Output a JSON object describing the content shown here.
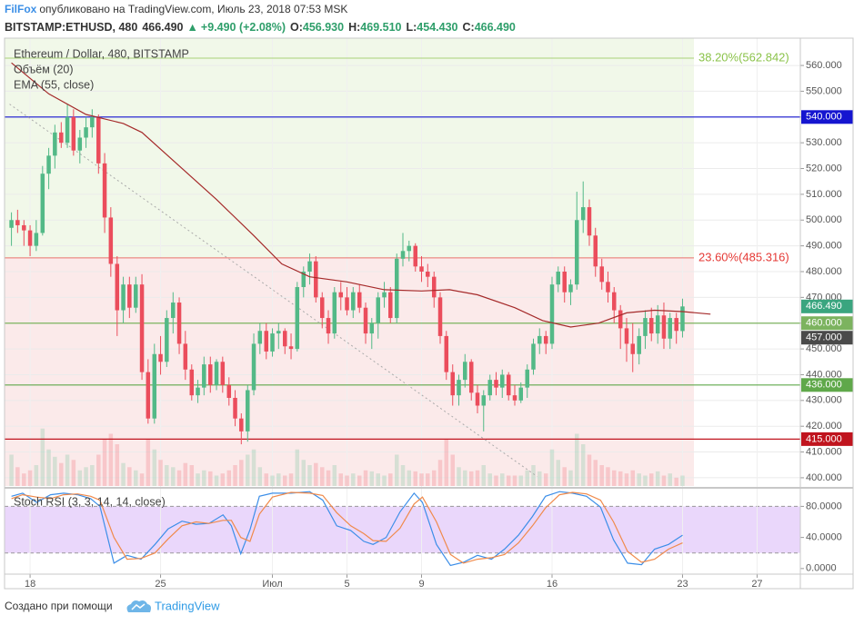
{
  "header": {
    "author": "FilFox",
    "published": "опубликовано на TradingView.com, Июль 23, 2018 07:53 MSK",
    "symbol": "BITSTAMP:ETHUSD, 480",
    "last": "466.490",
    "arrow": "▲",
    "change": "+9.490 (+2.08%)",
    "ohlc": [
      {
        "key": "O:",
        "value": "456.930"
      },
      {
        "key": "H:",
        "value": "469.510"
      },
      {
        "key": "L:",
        "value": "454.430"
      },
      {
        "key": "C:",
        "value": "466.490"
      }
    ]
  },
  "chart_data": [
    {
      "type": "candlestick",
      "legend": [
        "Ethereum / Dollar, 480, BITSTAMP",
        "Объём (20)",
        "EMA (55, close)"
      ],
      "up_color": "#53b987",
      "down_color": "#eb4d5c",
      "x": [
        -1,
        -0.67,
        -0.33,
        0,
        0.33,
        0.67,
        1,
        1.33,
        1.67,
        2,
        2.33,
        2.67,
        3,
        3.33,
        3.67,
        4,
        4.33,
        4.67,
        5,
        5.33,
        5.67,
        6,
        6.33,
        6.67,
        7,
        7.33,
        7.67,
        8,
        8.33,
        8.67,
        9,
        9.33,
        9.67,
        10,
        10.33,
        10.67,
        11,
        11.33,
        11.67,
        12,
        12.33,
        12.67,
        13,
        13.33,
        13.67,
        14,
        14.33,
        14.67,
        15,
        15.33,
        15.67,
        16,
        16.33,
        16.67,
        17,
        17.33,
        17.67,
        18,
        18.33,
        18.67,
        19,
        19.33,
        19.67,
        20,
        20.33,
        20.67,
        21,
        21.33,
        21.67,
        22,
        22.33,
        22.67,
        23,
        23.33,
        23.67,
        24,
        24.33,
        24.67,
        25,
        25.33,
        25.67,
        26,
        26.33,
        26.67,
        27,
        27.33,
        27.67,
        28,
        28.33,
        28.67,
        29,
        29.33,
        29.67,
        30,
        30.33,
        30.67,
        31,
        31.33,
        31.67,
        32,
        32.33,
        32.67,
        33,
        33.33,
        33.67,
        34,
        34.33,
        34.67,
        35
      ],
      "open": [
        497,
        500,
        498,
        496,
        490,
        495,
        518,
        525,
        534,
        530,
        540,
        527,
        532,
        536,
        540,
        522,
        501,
        483,
        465,
        475,
        466,
        475,
        441,
        423,
        448,
        445,
        462,
        468,
        452,
        442,
        432,
        435,
        444,
        436,
        445,
        436,
        431,
        423,
        418,
        434,
        452,
        457,
        449,
        456,
        457,
        451,
        450,
        474,
        480,
        484,
        470,
        462,
        456,
        472,
        470,
        465,
        472,
        466,
        456,
        460,
        470,
        472,
        462,
        485,
        488,
        490,
        482,
        480,
        478,
        470,
        455,
        441,
        432,
        438,
        445,
        433,
        428,
        432,
        438,
        435,
        440,
        432,
        430,
        435,
        442,
        452,
        455,
        452,
        475,
        480,
        472,
        475,
        500,
        505,
        494,
        482,
        476,
        472,
        465,
        458,
        452,
        448,
        455,
        462,
        456,
        463,
        454,
        462,
        456.93
      ],
      "high": [
        503,
        504,
        500,
        498,
        500,
        521,
        528,
        537,
        538,
        545,
        543,
        535,
        540,
        543,
        541,
        526,
        505,
        486,
        478,
        478,
        478,
        479,
        446,
        452,
        455,
        465,
        472,
        470,
        457,
        444,
        438,
        447,
        447,
        446,
        447,
        439,
        434,
        425,
        436,
        456,
        460,
        460,
        458,
        460,
        458,
        456,
        476,
        482,
        487,
        486,
        472,
        465,
        474,
        476,
        474,
        474,
        475,
        468,
        462,
        472,
        476,
        474,
        487,
        495,
        492,
        491,
        486,
        483,
        480,
        472,
        457,
        444,
        440,
        448,
        446,
        436,
        434,
        440,
        441,
        442,
        441,
        436,
        437,
        444,
        454,
        458,
        457,
        478,
        482,
        482,
        477,
        511,
        515,
        508,
        497,
        485,
        480,
        474,
        467,
        462,
        460,
        458,
        465,
        466,
        467,
        468,
        464,
        464,
        469.51
      ],
      "low": [
        490,
        495,
        490,
        486,
        488,
        494,
        512,
        520,
        528,
        528,
        525,
        522,
        528,
        532,
        518,
        495,
        478,
        455,
        460,
        462,
        464,
        438,
        421,
        421,
        440,
        443,
        456,
        448,
        438,
        430,
        429,
        432,
        433,
        434,
        433,
        428,
        420,
        413,
        414,
        432,
        448,
        446,
        447,
        450,
        448,
        446,
        449,
        470,
        475,
        468,
        458,
        452,
        454,
        465,
        463,
        462,
        464,
        452,
        450,
        454,
        466,
        460,
        460,
        482,
        484,
        480,
        476,
        474,
        466,
        452,
        438,
        428,
        428,
        435,
        430,
        425,
        418,
        430,
        432,
        431,
        430,
        428,
        429,
        431,
        440,
        448,
        448,
        450,
        472,
        468,
        467,
        473,
        495,
        490,
        478,
        473,
        468,
        460,
        450,
        445,
        441,
        444,
        450,
        453,
        452,
        450,
        450,
        452,
        454.43
      ],
      "close": [
        500,
        498,
        496,
        490,
        495,
        518,
        525,
        534,
        530,
        540,
        527,
        532,
        536,
        540,
        522,
        501,
        483,
        465,
        475,
        466,
        475,
        441,
        423,
        448,
        445,
        462,
        468,
        452,
        442,
        432,
        435,
        444,
        436,
        445,
        436,
        431,
        423,
        418,
        434,
        452,
        457,
        449,
        456,
        457,
        451,
        450,
        474,
        480,
        484,
        470,
        462,
        456,
        472,
        470,
        465,
        472,
        466,
        456,
        460,
        470,
        472,
        462,
        485,
        488,
        490,
        482,
        480,
        478,
        470,
        455,
        441,
        432,
        438,
        445,
        433,
        428,
        432,
        438,
        435,
        440,
        432,
        430,
        435,
        442,
        452,
        455,
        452,
        475,
        480,
        472,
        475,
        500,
        505,
        494,
        482,
        476,
        472,
        465,
        458,
        452,
        448,
        455,
        462,
        456,
        463,
        454,
        462,
        457,
        466.49
      ],
      "volume": [
        30,
        18,
        12,
        15,
        20,
        55,
        35,
        28,
        22,
        30,
        25,
        15,
        18,
        20,
        30,
        45,
        50,
        40,
        22,
        18,
        15,
        12,
        45,
        35,
        25,
        20,
        18,
        15,
        22,
        20,
        12,
        15,
        14,
        10,
        12,
        15,
        20,
        25,
        30,
        35,
        18,
        12,
        10,
        12,
        10,
        12,
        35,
        25,
        20,
        22,
        18,
        15,
        20,
        12,
        10,
        12,
        10,
        15,
        14,
        12,
        10,
        12,
        30,
        20,
        15,
        14,
        12,
        12,
        15,
        25,
        45,
        30,
        18,
        15,
        14,
        15,
        20,
        12,
        10,
        12,
        10,
        10,
        10,
        15,
        20,
        14,
        12,
        35,
        25,
        18,
        15,
        50,
        40,
        30,
        25,
        20,
        18,
        15,
        14,
        12,
        15,
        12,
        10,
        12,
        14,
        10,
        12,
        8,
        10
      ],
      "vlim": [
        0,
        100
      ],
      "xlim": [
        -1.37,
        41.32
      ],
      "xticks": [
        {
          "value": 0,
          "label": "18"
        },
        {
          "value": 7,
          "label": "25"
        },
        {
          "value": 13,
          "label": "Июл"
        },
        {
          "value": 17,
          "label": "5"
        },
        {
          "value": 21,
          "label": "9"
        },
        {
          "value": 28,
          "label": "16"
        },
        {
          "value": 35,
          "label": "23"
        },
        {
          "value": 39,
          "label": "27"
        }
      ],
      "ylim": [
        396.8,
        570.6
      ],
      "yticks": [
        {
          "value": 400,
          "label": "400.000"
        },
        {
          "value": 410,
          "label": "410.000"
        },
        {
          "value": 420,
          "label": "420.000"
        },
        {
          "value": 430,
          "label": "430.000"
        },
        {
          "value": 440,
          "label": "440.000"
        },
        {
          "value": 450,
          "label": "450.000"
        },
        {
          "value": 460,
          "label": "460.000"
        },
        {
          "value": 470,
          "label": "470.000"
        },
        {
          "value": 480,
          "label": "480.000"
        },
        {
          "value": 490,
          "label": "490.000"
        },
        {
          "value": 500,
          "label": "500.000"
        },
        {
          "value": 510,
          "label": "510.000"
        },
        {
          "value": 520,
          "label": "520.000"
        },
        {
          "value": 530,
          "label": "530.000"
        },
        {
          "value": 540,
          "label": "540.000"
        },
        {
          "value": 550,
          "label": "550.000"
        },
        {
          "value": 560,
          "label": "560.000"
        }
      ],
      "grid": true,
      "ema": {
        "color": "#a52a2a",
        "x": [
          -1,
          1,
          3,
          5,
          6,
          8,
          10,
          12,
          13.5,
          15,
          17,
          19,
          21,
          22.5,
          24,
          26,
          27.5,
          29,
          30.5,
          32,
          33.5,
          35,
          36.5
        ],
        "values": [
          561,
          549,
          541,
          537.5,
          534,
          521,
          508,
          494,
          483,
          478,
          476,
          473,
          472.5,
          473,
          471,
          466,
          461,
          458.5,
          460,
          464,
          465,
          464.5,
          463.5
        ]
      },
      "trendline": {
        "color": "#aaaaaa",
        "x": [
          -1.1,
          27.2
        ],
        "values": [
          545,
          400.5
        ]
      },
      "fib": [
        {
          "value": 562.842,
          "label": "38.20%(562.842)",
          "color": "#8bc34a",
          "fill": "#f1f8e9"
        },
        {
          "value": 485.316,
          "label": "23.60%(485.316)",
          "color": "#e53935",
          "fill": "#fbeaea"
        }
      ],
      "levels": [
        {
          "value": 540,
          "label": "540.000",
          "color": "#1515d0"
        },
        {
          "value": 415,
          "label": "415.000",
          "color": "#c0141e"
        },
        {
          "value": 436,
          "label": "436.000",
          "color": "#5fa84a"
        },
        {
          "value": 460,
          "label": "460.000",
          "color": "#7cb35f"
        }
      ],
      "badges": [
        {
          "value": 466.49,
          "label": "466.490",
          "color": "#3aa57f"
        },
        {
          "value": 457,
          "label": "457.000",
          "color": "#4a4a4a"
        }
      ]
    },
    {
      "type": "line",
      "title": "Stoch RSI (3, 3, 14, 14, close)",
      "x": [
        -1,
        -0.4,
        0.35,
        1.1,
        1.8,
        2.55,
        3.25,
        3.75,
        4.5,
        5.2,
        5.95,
        6.7,
        7.4,
        8.15,
        8.9,
        9.6,
        10.35,
        10.8,
        11.3,
        11.8,
        12.3,
        13,
        14,
        15,
        15.7,
        16.45,
        17.2,
        17.9,
        18.4,
        19.1,
        19.85,
        20.6,
        21.05,
        21.8,
        22.55,
        23.25,
        24,
        24.75,
        25.45,
        26.2,
        26.95,
        27.65,
        28.4,
        29.1,
        29.85,
        30.6,
        31.3,
        32.05,
        32.8,
        33.5,
        34.25,
        35
      ],
      "series": [
        {
          "color": "#3c8ee8",
          "values": [
            93,
            97,
            85,
            95,
            97,
            95,
            90,
            80,
            7,
            17,
            12,
            31,
            51,
            61,
            57,
            58,
            69,
            55,
            19,
            50,
            93,
            97,
            97,
            99,
            88,
            55,
            49,
            35,
            31,
            40,
            73,
            97,
            85,
            31,
            4,
            8,
            17,
            12,
            25,
            43,
            67,
            93,
            99,
            97,
            93,
            79,
            37,
            7,
            5,
            25,
            31,
            43
          ]
        },
        {
          "color": "#f08a4b",
          "values": [
            90,
            95,
            92,
            90,
            95,
            96,
            93,
            88,
            40,
            12,
            13,
            20,
            38,
            55,
            60,
            58,
            62,
            62,
            40,
            35,
            70,
            92,
            98,
            97,
            94,
            72,
            55,
            45,
            36,
            35,
            52,
            83,
            92,
            60,
            18,
            7,
            12,
            14,
            18,
            33,
            55,
            78,
            95,
            98,
            96,
            88,
            60,
            22,
            8,
            12,
            25,
            33
          ]
        }
      ],
      "band": [
        20,
        80
      ],
      "band_color": "#ead7fb",
      "ylim": [
        -7.2,
        102.7
      ],
      "yticks": [
        {
          "value": 0,
          "label": "0.0000"
        },
        {
          "value": 40,
          "label": "40.0000"
        },
        {
          "value": 80,
          "label": "80.0000"
        }
      ]
    }
  ],
  "footer": {
    "text": "Создано при помощи",
    "brand": "TradingView"
  }
}
